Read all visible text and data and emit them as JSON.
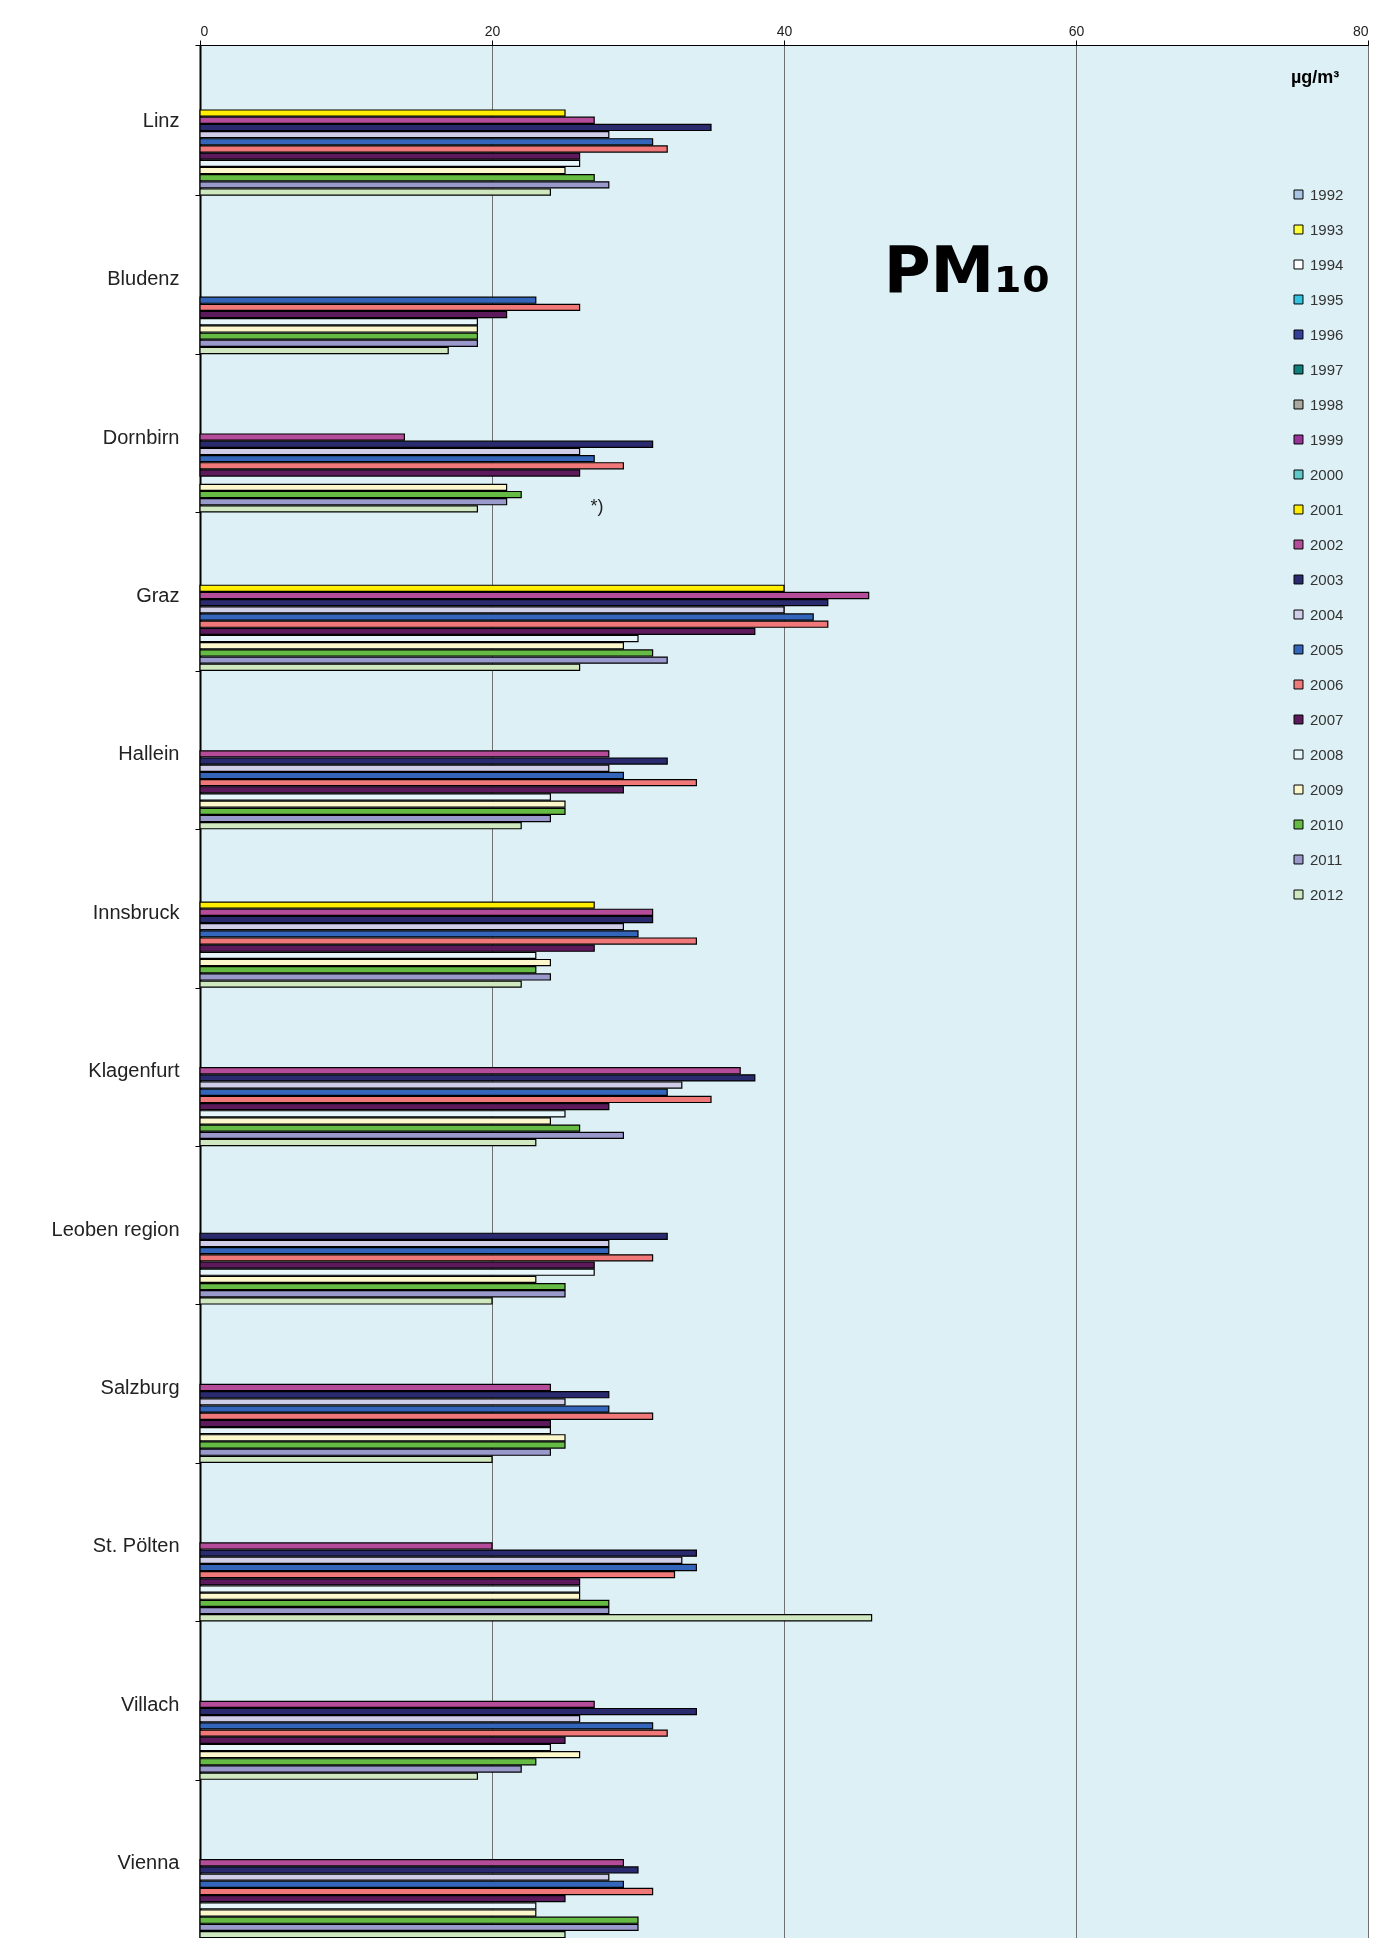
{
  "chart_data": {
    "type": "bar",
    "orientation": "horizontal",
    "title": "PM₁₀",
    "legend_title": "µg/m³",
    "legend": "top right",
    "grid": "x",
    "categories": [
      "Linz",
      "Bludenz",
      "Dornbirn",
      "Graz",
      "Hallein",
      "Innsbruck",
      "Klagenfurt",
      "Leoben region",
      "Salzburg",
      "St. Pölten",
      "Villach",
      "Vienna"
    ],
    "xlim": [
      0,
      80
    ],
    "xticks": [
      0,
      20,
      40,
      60,
      80
    ],
    "annotations": [
      "*)"
    ],
    "series": [
      {
        "name": "1992",
        "color": "#a9c4e4",
        "values": [
          null,
          null,
          null,
          null,
          null,
          null,
          null,
          null,
          null,
          null,
          null,
          null
        ]
      },
      {
        "name": "1993",
        "color": "#ffff33",
        "values": [
          null,
          null,
          null,
          null,
          null,
          null,
          null,
          null,
          null,
          null,
          null,
          null
        ]
      },
      {
        "name": "1994",
        "color": "#ffffff",
        "values": [
          null,
          null,
          null,
          null,
          null,
          null,
          null,
          null,
          null,
          null,
          null,
          null
        ]
      },
      {
        "name": "1995",
        "color": "#33c3e0",
        "values": [
          null,
          null,
          null,
          null,
          null,
          null,
          null,
          null,
          null,
          null,
          null,
          null
        ]
      },
      {
        "name": "1996",
        "color": "#333f99",
        "values": [
          null,
          null,
          null,
          null,
          null,
          null,
          null,
          null,
          null,
          null,
          null,
          null
        ]
      },
      {
        "name": "1997",
        "color": "#0e7f7a",
        "values": [
          null,
          null,
          null,
          null,
          null,
          null,
          null,
          null,
          null,
          null,
          null,
          null
        ]
      },
      {
        "name": "1998",
        "color": "#a8a8a0",
        "values": [
          null,
          null,
          null,
          null,
          null,
          null,
          null,
          null,
          null,
          null,
          null,
          null
        ]
      },
      {
        "name": "1999",
        "color": "#993399",
        "values": [
          null,
          null,
          null,
          null,
          null,
          null,
          null,
          null,
          null,
          null,
          null,
          null
        ]
      },
      {
        "name": "2000",
        "color": "#5fc8c8",
        "values": [
          null,
          null,
          null,
          null,
          null,
          null,
          null,
          null,
          null,
          null,
          null,
          null
        ]
      },
      {
        "name": "2001",
        "color": "#ffee00",
        "values": [
          25,
          null,
          null,
          40,
          null,
          27,
          null,
          null,
          null,
          null,
          null,
          null
        ]
      },
      {
        "name": "2002",
        "color": "#b44c9a",
        "values": [
          27,
          null,
          14,
          45.8,
          28,
          31,
          37,
          null,
          24,
          20,
          27,
          29
        ]
      },
      {
        "name": "2003",
        "color": "#2a2a6e",
        "values": [
          35,
          null,
          31,
          43,
          32,
          31,
          38,
          32,
          28,
          34,
          34,
          30
        ]
      },
      {
        "name": "2004",
        "color": "#cfcde8",
        "values": [
          28,
          null,
          26,
          40,
          28,
          29,
          33,
          28,
          25,
          33,
          26,
          28
        ]
      },
      {
        "name": "2005",
        "color": "#3366bb",
        "values": [
          31,
          23,
          27,
          42,
          29,
          30,
          32,
          28,
          28,
          34,
          31,
          29
        ]
      },
      {
        "name": "2006",
        "color": "#f07878",
        "values": [
          32,
          26,
          29,
          43,
          34,
          34,
          35,
          31,
          31,
          32.5,
          32,
          31
        ]
      },
      {
        "name": "2007",
        "color": "#5c1a5c",
        "values": [
          26,
          21,
          26,
          38,
          29,
          27,
          28,
          27,
          24,
          26,
          25,
          25
        ]
      },
      {
        "name": "2008",
        "color": "#e6f6fa",
        "values": [
          26,
          19,
          null,
          30,
          24,
          23,
          25,
          27,
          24,
          26,
          24,
          23
        ]
      },
      {
        "name": "2009",
        "color": "#fdf8cc",
        "values": [
          25,
          19,
          21,
          29,
          25,
          24,
          24,
          23,
          25,
          26,
          26,
          23
        ]
      },
      {
        "name": "2010",
        "color": "#66bb44",
        "values": [
          27,
          19,
          22,
          31,
          25,
          23,
          26,
          25,
          25,
          28,
          23,
          30
        ]
      },
      {
        "name": "2011",
        "color": "#9999cc",
        "values": [
          28,
          19,
          21,
          32,
          24,
          24,
          29,
          25,
          24,
          28,
          22,
          30
        ]
      },
      {
        "name": "2012",
        "color": "#cfe8bf",
        "values": [
          24,
          17,
          19,
          26,
          22,
          22,
          23,
          20,
          20,
          46,
          19,
          25
        ]
      }
    ]
  }
}
